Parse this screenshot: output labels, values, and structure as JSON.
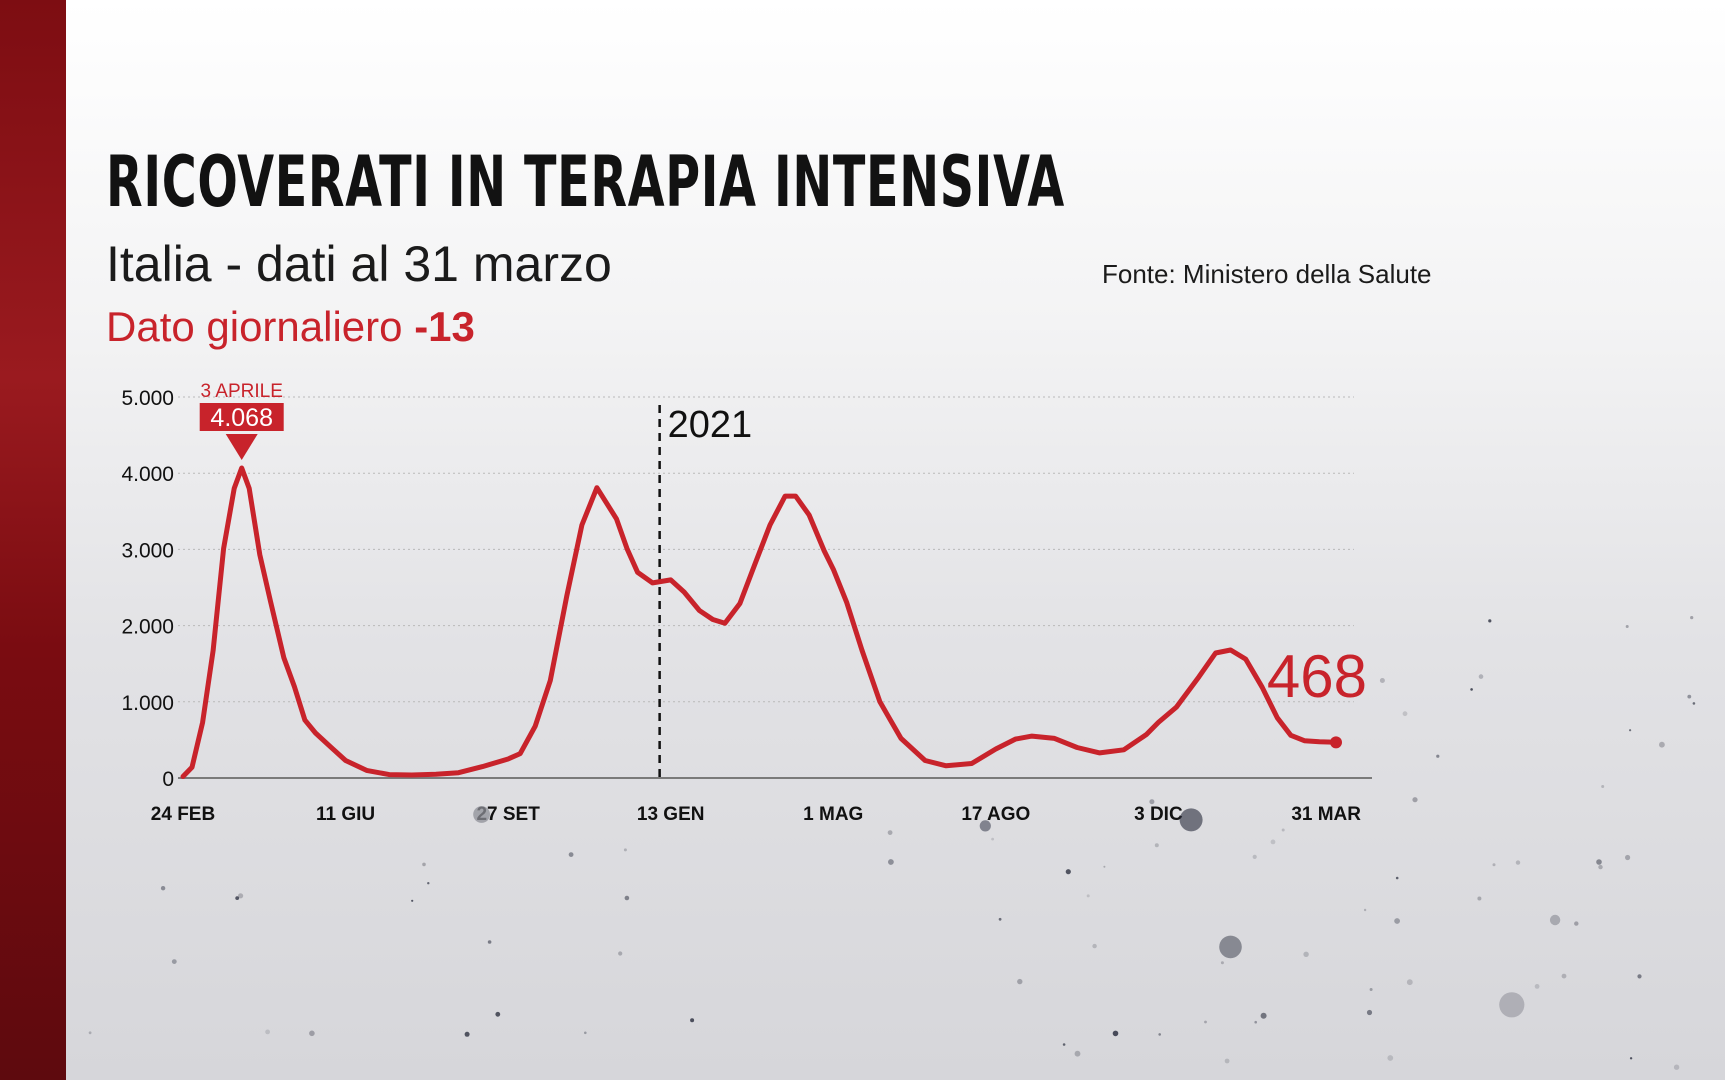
{
  "header": {
    "title": "RICOVERATI IN TERAPIA INTENSIVA",
    "subtitle": "Italia - dati al 31 marzo",
    "daily_label": "Dato giornaliero",
    "daily_value": "-13",
    "source": "Fonte: Ministero della Salute"
  },
  "colors": {
    "accent": "#c8232b",
    "sidebar": "#8e1419",
    "grid": "#b9b9b9",
    "text": "#111111"
  },
  "chart_data": {
    "type": "line",
    "title": "RICOVERATI IN TERAPIA INTENSIVA",
    "subtitle": "Italia - dati al 31 marzo",
    "xlabel": "",
    "ylabel": "",
    "ylim": [
      0,
      5000
    ],
    "y_ticks": [
      0,
      1000,
      2000,
      3000,
      4000,
      5000
    ],
    "y_tick_labels": [
      "0",
      "1.000",
      "2.000",
      "3.000",
      "4.000",
      "5.000"
    ],
    "x_ticks": [
      {
        "date": "2020-02-24",
        "label": "24 FEB"
      },
      {
        "date": "2020-06-11",
        "label": "11 GIU"
      },
      {
        "date": "2020-09-27",
        "label": "27 SET"
      },
      {
        "date": "2021-01-13",
        "label": "13 GEN"
      },
      {
        "date": "2021-05-01",
        "label": "1 MAG"
      },
      {
        "date": "2021-08-17",
        "label": "17 AGO"
      },
      {
        "date": "2021-12-03",
        "label": "3 DIC"
      },
      {
        "date": "2022-03-31",
        "label": "31 MAR"
      }
    ],
    "grid": true,
    "year_marker": {
      "date": "2021-01-01",
      "label": "2021"
    },
    "peak_annotation": {
      "date": "2020-04-03",
      "value": 4068,
      "label_date": "3 APRILE",
      "label_value": "4.068"
    },
    "end_annotation": {
      "date": "2022-03-31",
      "value": 468,
      "label": "468"
    },
    "series": [
      {
        "points": [
          [
            "2020-02-24",
            20
          ],
          [
            "2020-03-01",
            140
          ],
          [
            "2020-03-08",
            730
          ],
          [
            "2020-03-15",
            1670
          ],
          [
            "2020-03-22",
            3010
          ],
          [
            "2020-03-29",
            3800
          ],
          [
            "2020-04-03",
            4068
          ],
          [
            "2020-04-08",
            3800
          ],
          [
            "2020-04-15",
            2930
          ],
          [
            "2020-04-22",
            2330
          ],
          [
            "2020-05-01",
            1580
          ],
          [
            "2020-05-08",
            1200
          ],
          [
            "2020-05-15",
            760
          ],
          [
            "2020-05-22",
            590
          ],
          [
            "2020-06-01",
            410
          ],
          [
            "2020-06-11",
            230
          ],
          [
            "2020-06-25",
            100
          ],
          [
            "2020-07-10",
            45
          ],
          [
            "2020-07-25",
            40
          ],
          [
            "2020-08-10",
            50
          ],
          [
            "2020-08-25",
            70
          ],
          [
            "2020-09-10",
            150
          ],
          [
            "2020-09-27",
            250
          ],
          [
            "2020-10-05",
            320
          ],
          [
            "2020-10-15",
            680
          ],
          [
            "2020-10-25",
            1280
          ],
          [
            "2020-11-05",
            2390
          ],
          [
            "2020-11-15",
            3320
          ],
          [
            "2020-11-25",
            3810
          ],
          [
            "2020-12-01",
            3620
          ],
          [
            "2020-12-08",
            3400
          ],
          [
            "2020-12-15",
            3010
          ],
          [
            "2020-12-22",
            2700
          ],
          [
            "2021-01-01",
            2560
          ],
          [
            "2021-01-13",
            2600
          ],
          [
            "2021-01-22",
            2440
          ],
          [
            "2021-02-01",
            2200
          ],
          [
            "2021-02-10",
            2080
          ],
          [
            "2021-02-18",
            2030
          ],
          [
            "2021-02-28",
            2290
          ],
          [
            "2021-03-10",
            2810
          ],
          [
            "2021-03-20",
            3320
          ],
          [
            "2021-03-30",
            3700
          ],
          [
            "2021-04-06",
            3700
          ],
          [
            "2021-04-15",
            3450
          ],
          [
            "2021-04-25",
            2980
          ],
          [
            "2021-05-01",
            2740
          ],
          [
            "2021-05-10",
            2300
          ],
          [
            "2021-05-20",
            1680
          ],
          [
            "2021-06-01",
            1000
          ],
          [
            "2021-06-15",
            520
          ],
          [
            "2021-07-01",
            230
          ],
          [
            "2021-07-15",
            160
          ],
          [
            "2021-08-01",
            190
          ],
          [
            "2021-08-17",
            380
          ],
          [
            "2021-08-30",
            510
          ],
          [
            "2021-09-10",
            550
          ],
          [
            "2021-09-25",
            520
          ],
          [
            "2021-10-10",
            400
          ],
          [
            "2021-10-25",
            330
          ],
          [
            "2021-11-10",
            370
          ],
          [
            "2021-11-25",
            570
          ],
          [
            "2021-12-03",
            730
          ],
          [
            "2021-12-15",
            930
          ],
          [
            "2021-12-30",
            1330
          ],
          [
            "2022-01-10",
            1640
          ],
          [
            "2022-01-20",
            1680
          ],
          [
            "2022-01-30",
            1560
          ],
          [
            "2022-02-10",
            1190
          ],
          [
            "2022-02-20",
            790
          ],
          [
            "2022-03-01",
            560
          ],
          [
            "2022-03-10",
            490
          ],
          [
            "2022-03-20",
            475
          ],
          [
            "2022-03-31",
            468
          ]
        ]
      }
    ]
  }
}
